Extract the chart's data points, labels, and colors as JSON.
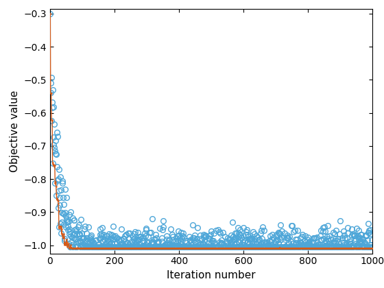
{
  "title": "",
  "xlabel": "Iteration number",
  "ylabel": "Objective value",
  "xlim": [
    0,
    1000
  ],
  "ylim": [
    -1.025,
    -0.285
  ],
  "yticks": [
    -1.0,
    -0.9,
    -0.8,
    -0.7,
    -0.6,
    -0.5,
    -0.4,
    -0.3
  ],
  "xticks": [
    0,
    200,
    400,
    600,
    800,
    1000
  ],
  "n_points": 1000,
  "seed": 7,
  "scatter_color": "#4da6d8",
  "line_color": "#d45b1a",
  "scatter_marker": "o",
  "scatter_markersize": 5.5,
  "line_width": 1.0,
  "figsize": [
    5.6,
    4.2
  ],
  "dpi": 100
}
